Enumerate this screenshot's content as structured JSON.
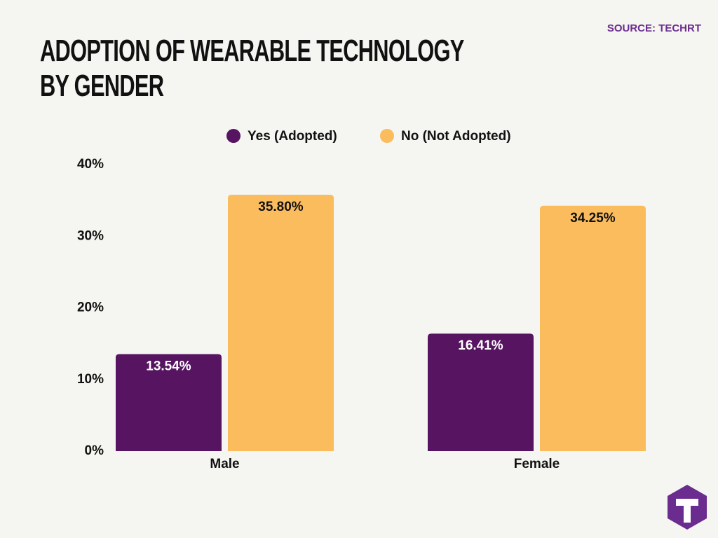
{
  "chart_data": {
    "type": "bar",
    "title": "ADOPTION OF WEARABLE TECHNOLOGY BY GENDER",
    "source": "SOURCE: TECHRT",
    "categories": [
      "Male",
      "Female"
    ],
    "series": [
      {
        "name": "Yes (Adopted)",
        "color": "#561461",
        "values": [
          13.54,
          16.41
        ],
        "value_labels": [
          "13.54%",
          "16.41%"
        ]
      },
      {
        "name": "No (Not Adopted)",
        "color": "#fbbc5e",
        "values": [
          35.8,
          34.25
        ],
        "value_labels": [
          "35.80%",
          "34.25%"
        ]
      }
    ],
    "ylim": [
      0,
      40
    ],
    "yticks": [
      {
        "value": 0,
        "label": "0%"
      },
      {
        "value": 10,
        "label": "10%"
      },
      {
        "value": 20,
        "label": "20%"
      },
      {
        "value": 30,
        "label": "30%"
      },
      {
        "value": 40,
        "label": "40%"
      }
    ],
    "grid": false,
    "legend": "top"
  }
}
